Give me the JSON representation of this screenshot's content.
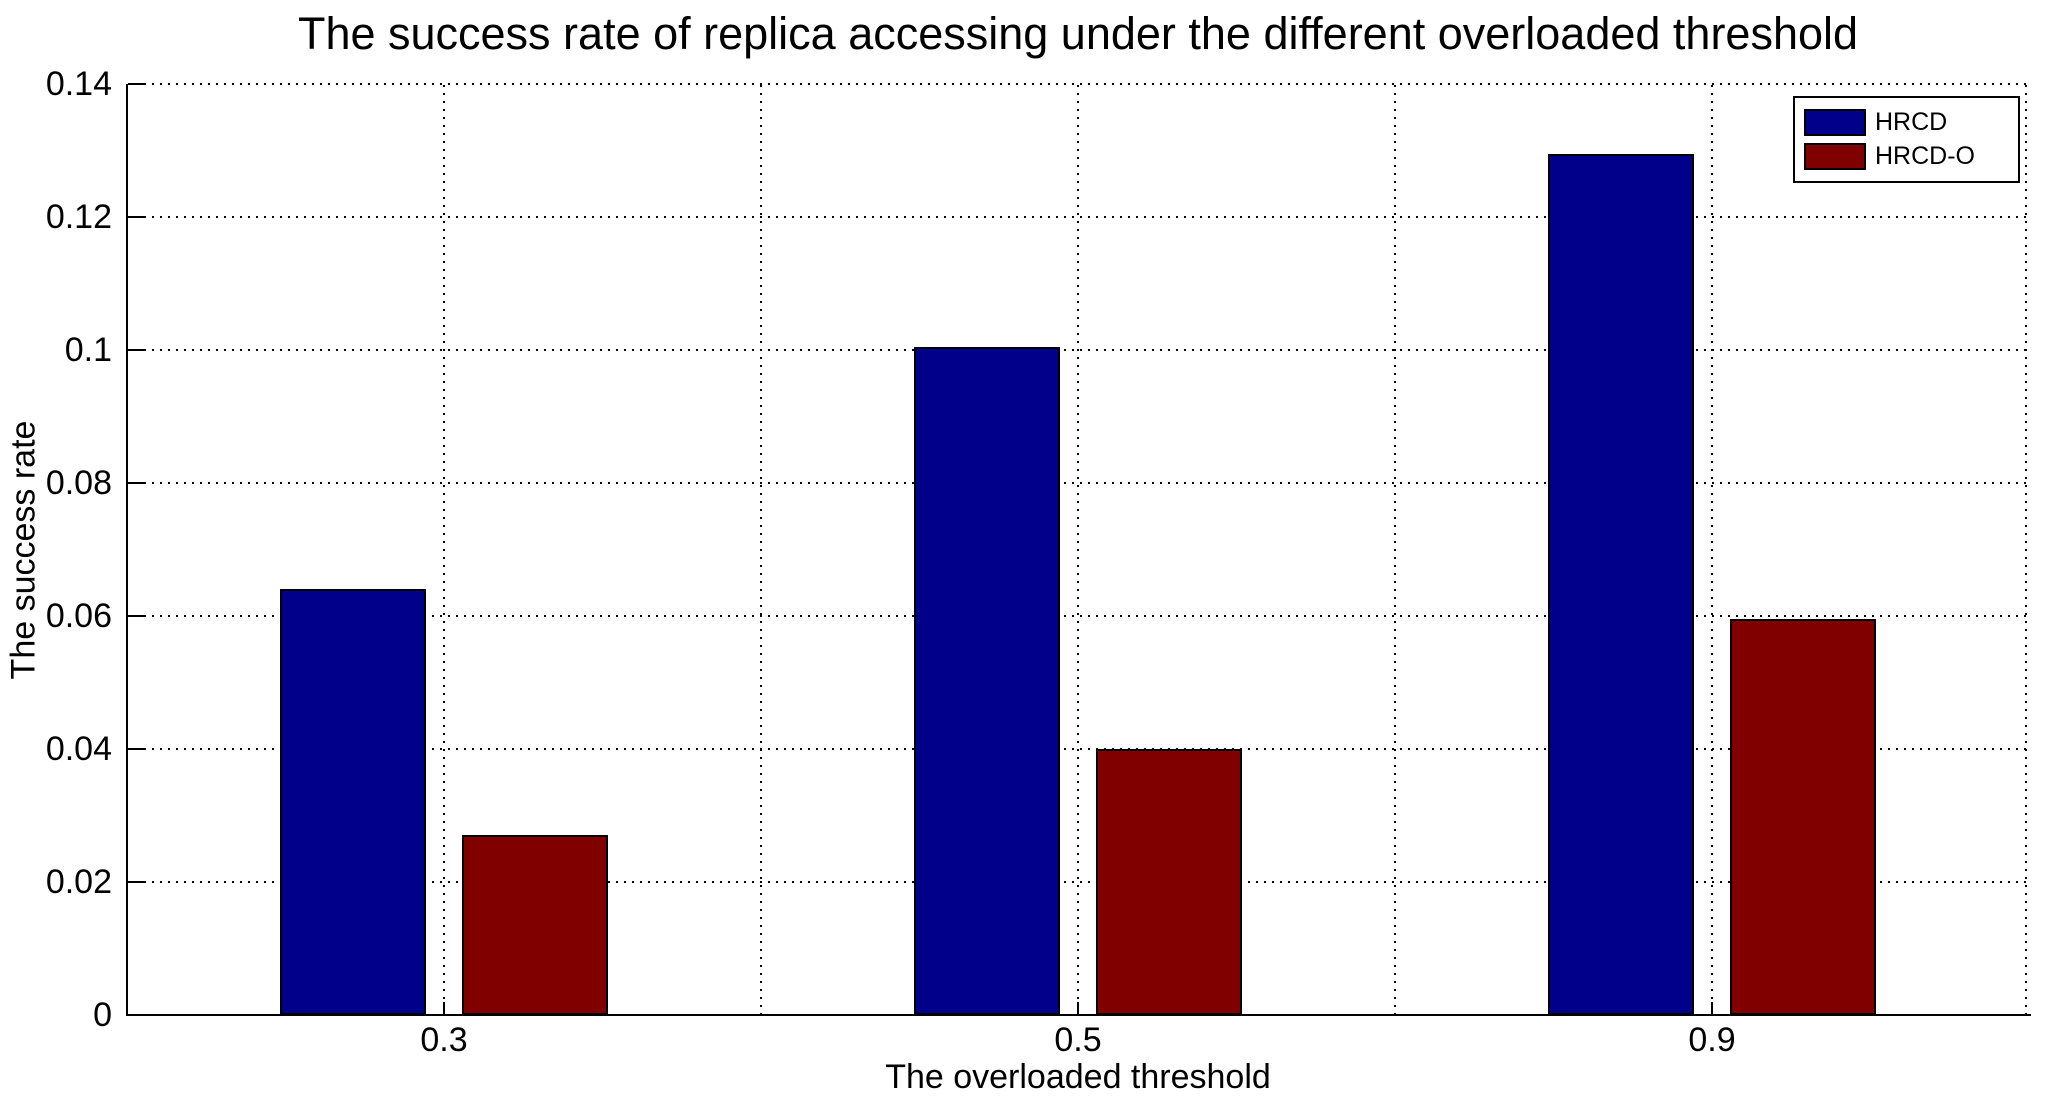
{
  "figure": {
    "background": "#ffffff",
    "axis_color": "#000000"
  },
  "chart_data": {
    "type": "bar",
    "title": "The success rate of replica accessing under the different overloaded threshold",
    "xlabel": "The overloaded threshold",
    "ylabel": "The success rate",
    "categories": [
      "0.3",
      "0.5",
      "0.9"
    ],
    "series": [
      {
        "name": "HRCD",
        "color": "#00008B",
        "values": [
          0.064,
          0.1005,
          0.1295
        ]
      },
      {
        "name": "HRCD-O",
        "color": "#800000",
        "values": [
          0.027,
          0.04,
          0.0595
        ]
      }
    ],
    "ylim": [
      0,
      0.14
    ],
    "yticks": [
      0,
      0.02,
      0.04,
      0.06,
      0.08,
      0.1,
      0.12,
      0.14
    ],
    "ytick_labels": [
      "0",
      "0.02",
      "0.04",
      "0.06",
      "0.08",
      "0.1",
      "0.12",
      "0.14"
    ],
    "grid": "dotted",
    "legend": {
      "position": "top-right",
      "entries": [
        "HRCD",
        "HRCD-O"
      ]
    }
  }
}
